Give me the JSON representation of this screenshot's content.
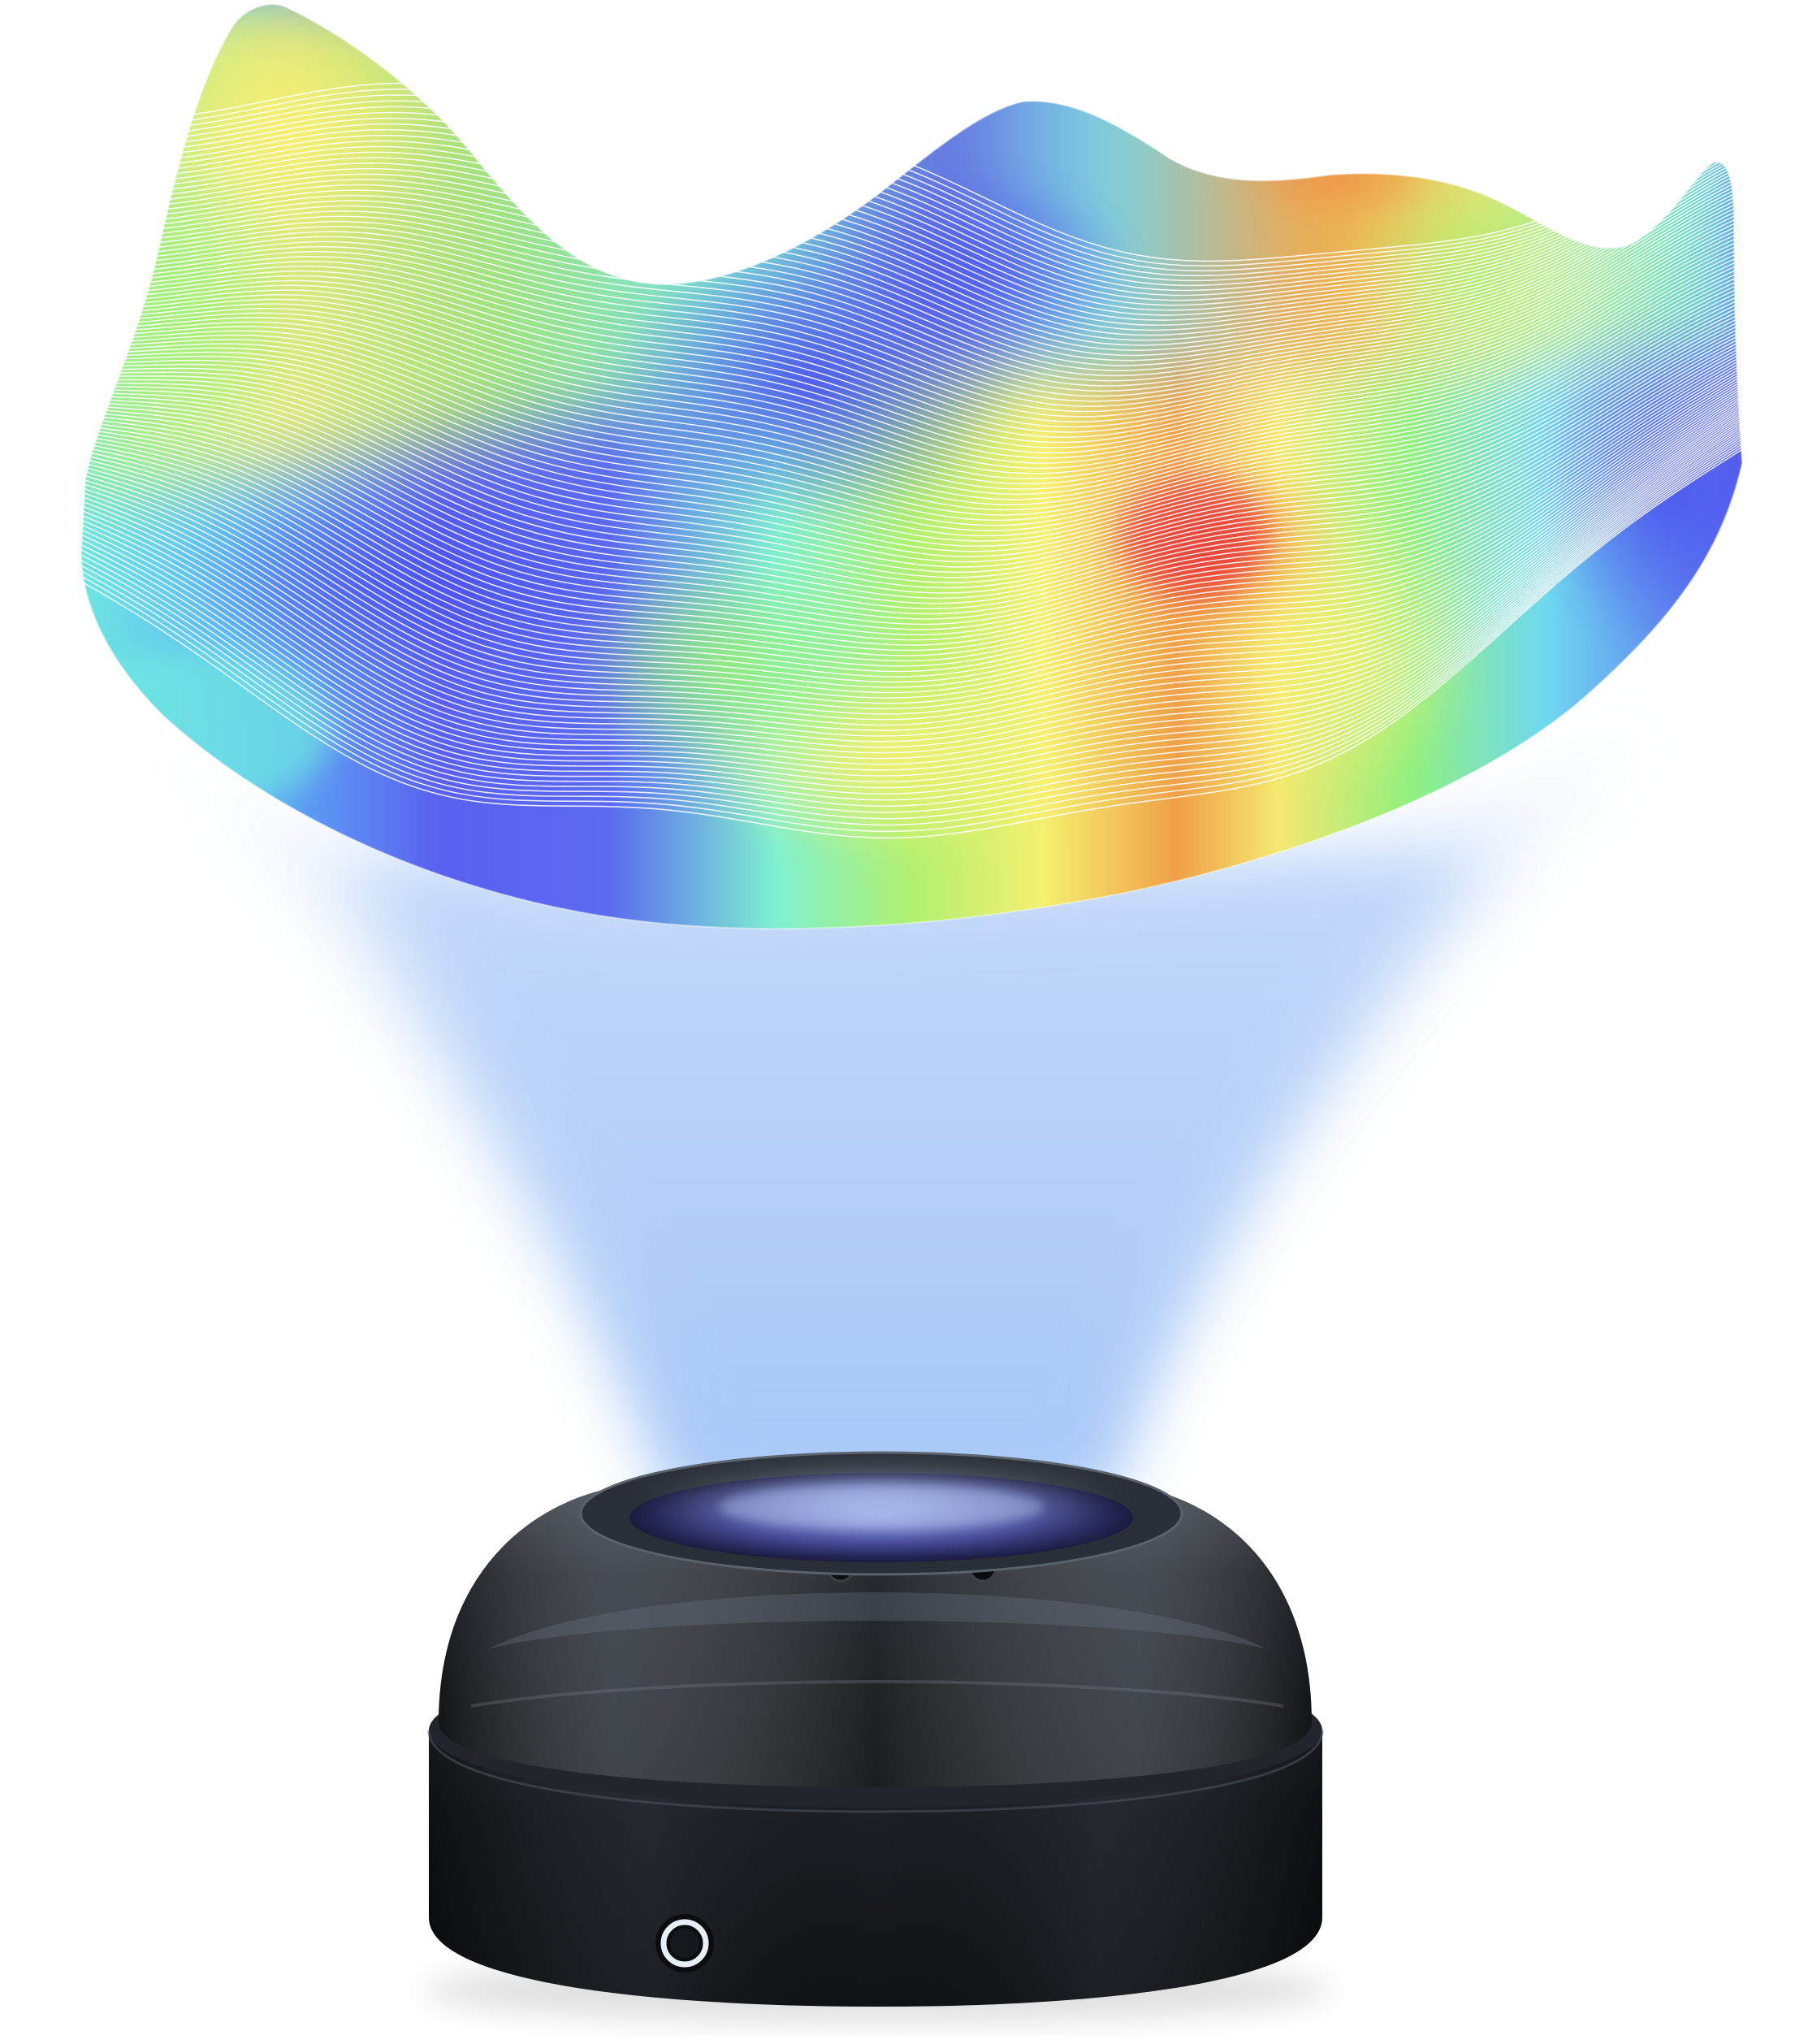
{
  "scene": {
    "subject": "holographic-projector",
    "colors": {
      "background": "#ffffff",
      "beam": "#8fb8f5",
      "surface_gradient": [
        "#5a5ff0",
        "#5fa8f5",
        "#7ff0d0",
        "#a8f070",
        "#f5f070",
        "#f5a040",
        "#e8483a"
      ],
      "contour_lines": "#ffffff",
      "device_body": "#1c1f24",
      "device_lens": "#3a3c8a",
      "power_ring": "#e8eef5"
    }
  }
}
